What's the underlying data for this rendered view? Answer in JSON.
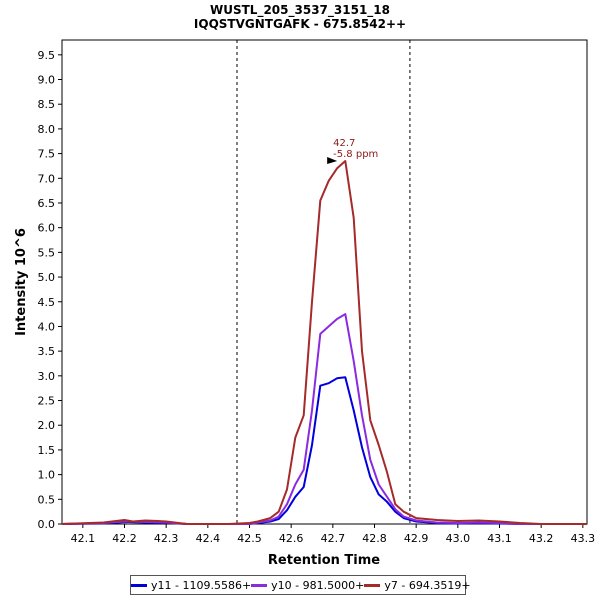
{
  "chart_data": {
    "type": "line",
    "title": "WUSTL_205_3537_3151_18",
    "subtitle": "IQQSTVGNTGAFK - 675.8542++",
    "xlabel": "Retention Time",
    "ylabel": "Intensity 10^6",
    "xlim": [
      42.05,
      43.31
    ],
    "ylim": [
      0,
      9.8
    ],
    "xticks": [
      "42.1",
      "42.2",
      "42.3",
      "42.4",
      "42.5",
      "42.6",
      "42.7",
      "42.8",
      "42.9",
      "43.0",
      "43.1",
      "43.2",
      "43.3"
    ],
    "yticks": [
      "0.0",
      "0.5",
      "1.0",
      "1.5",
      "2.0",
      "2.5",
      "3.0",
      "3.5",
      "4.0",
      "4.5",
      "5.0",
      "5.5",
      "6.0",
      "6.5",
      "7.0",
      "7.5",
      "8.0",
      "8.5",
      "9.0",
      "9.5"
    ],
    "grid": false,
    "legend_position": "bottom",
    "integration_bounds": [
      42.47,
      42.885
    ],
    "annotation": {
      "x": 42.72,
      "y": 7.35,
      "line1": "42.7",
      "line2": "-5.8 ppm",
      "color": "#8b1a1a"
    },
    "series": [
      {
        "name": "y11 - 1109.5586+",
        "color": "#0000dd",
        "x": [
          42.05,
          42.15,
          42.2,
          42.25,
          42.3,
          42.35,
          42.4,
          42.45,
          42.5,
          42.52,
          42.55,
          42.57,
          42.59,
          42.61,
          42.63,
          42.65,
          42.67,
          42.69,
          42.71,
          42.73,
          42.75,
          42.77,
          42.79,
          42.81,
          42.83,
          42.85,
          42.87,
          42.9,
          42.95,
          43.0,
          43.05,
          43.1,
          43.15,
          43.2,
          43.25,
          43.31
        ],
        "y": [
          0.0,
          0.01,
          0.04,
          0.03,
          0.02,
          0.0,
          0.0,
          0.0,
          0.0,
          0.02,
          0.05,
          0.1,
          0.28,
          0.55,
          0.75,
          1.6,
          2.8,
          2.85,
          2.95,
          2.97,
          2.3,
          1.55,
          0.95,
          0.6,
          0.45,
          0.25,
          0.12,
          0.05,
          0.02,
          0.01,
          0.02,
          0.01,
          0.0,
          0.0,
          0.0,
          0.0
        ]
      },
      {
        "name": "y10 - 981.5000+",
        "color": "#8a2be2",
        "x": [
          42.05,
          42.15,
          42.2,
          42.25,
          42.3,
          42.35,
          42.4,
          42.45,
          42.5,
          42.52,
          42.55,
          42.57,
          42.59,
          42.61,
          42.63,
          42.65,
          42.67,
          42.69,
          42.71,
          42.73,
          42.75,
          42.77,
          42.79,
          42.81,
          42.83,
          42.85,
          42.87,
          42.9,
          42.95,
          43.0,
          43.05,
          43.1,
          43.15,
          43.2,
          43.25,
          43.31
        ],
        "y": [
          0.0,
          0.02,
          0.05,
          0.04,
          0.03,
          0.0,
          0.0,
          0.0,
          0.0,
          0.03,
          0.07,
          0.15,
          0.4,
          0.8,
          1.1,
          2.3,
          3.85,
          4.0,
          4.15,
          4.25,
          3.3,
          2.2,
          1.3,
          0.8,
          0.55,
          0.3,
          0.15,
          0.07,
          0.03,
          0.02,
          0.03,
          0.02,
          0.0,
          0.0,
          0.0,
          0.0
        ]
      },
      {
        "name": "y7 - 694.3519+",
        "color": "#a52a2a",
        "x": [
          42.05,
          42.15,
          42.2,
          42.22,
          42.25,
          42.28,
          42.3,
          42.35,
          42.4,
          42.45,
          42.5,
          42.52,
          42.55,
          42.57,
          42.59,
          42.61,
          42.63,
          42.65,
          42.67,
          42.69,
          42.71,
          42.73,
          42.75,
          42.77,
          42.79,
          42.81,
          42.83,
          42.85,
          42.87,
          42.9,
          42.95,
          43.0,
          43.05,
          43.1,
          43.15,
          43.2,
          43.25,
          43.31
        ],
        "y": [
          0.0,
          0.03,
          0.08,
          0.05,
          0.07,
          0.06,
          0.05,
          0.0,
          0.0,
          0.0,
          0.02,
          0.05,
          0.12,
          0.25,
          0.7,
          1.75,
          2.2,
          4.5,
          6.55,
          6.95,
          7.2,
          7.35,
          6.2,
          3.5,
          2.1,
          1.6,
          1.05,
          0.4,
          0.25,
          0.12,
          0.08,
          0.06,
          0.07,
          0.05,
          0.02,
          0.0,
          0.0,
          0.0
        ]
      }
    ]
  }
}
